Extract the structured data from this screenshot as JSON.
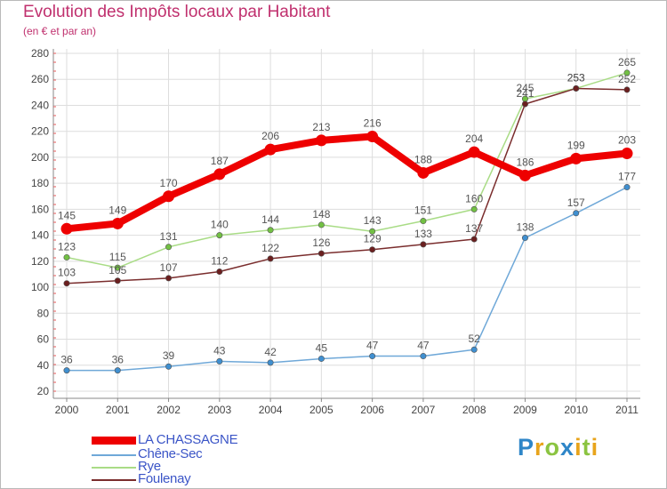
{
  "header": {
    "title": "Evolution des Impôts locaux par Habitant",
    "subtitle": "(en € et par an)"
  },
  "logo": {
    "text": "Proxiti",
    "letters": [
      {
        "ch": "P",
        "color": "#2e86c8"
      },
      {
        "ch": "r",
        "color": "#e8a41c"
      },
      {
        "ch": "o",
        "color": "#8bc441"
      },
      {
        "ch": "x",
        "color": "#2e86c8"
      },
      {
        "ch": "i",
        "color": "#e8a41c"
      },
      {
        "ch": "t",
        "color": "#8bc441"
      },
      {
        "ch": "i",
        "color": "#e8a41c"
      }
    ]
  },
  "chart_data": {
    "type": "line",
    "title": "Evolution des Impôts locaux par Habitant",
    "subtitle": "(en € et par an)",
    "xlabel": "",
    "ylabel": "",
    "x": [
      "2000",
      "2001",
      "2002",
      "2003",
      "2004",
      "2005",
      "2006",
      "2007",
      "2008",
      "2009",
      "2010",
      "2011"
    ],
    "ylim": [
      20,
      280
    ],
    "yticks": [
      20,
      40,
      60,
      80,
      100,
      120,
      140,
      160,
      180,
      200,
      220,
      240,
      260,
      280
    ],
    "grid": true,
    "legend": "bottom-left",
    "series": [
      {
        "name": "LA CHASSAGNE",
        "values": [
          145,
          149,
          170,
          187,
          206,
          213,
          216,
          188,
          204,
          186,
          199,
          203
        ],
        "color": "#ee0000",
        "marker_color": "#ee0000",
        "thick": true
      },
      {
        "name": "Chêne-Sec",
        "values": [
          36,
          36,
          39,
          43,
          42,
          45,
          47,
          47,
          52,
          138,
          157,
          177
        ],
        "color": "#6fa8d8",
        "marker_color": "#3f8fd0",
        "thick": false
      },
      {
        "name": "Rye",
        "values": [
          123,
          115,
          131,
          140,
          144,
          148,
          143,
          151,
          160,
          245,
          253,
          265
        ],
        "color": "#a9dc86",
        "marker_color": "#72c043",
        "thick": false
      },
      {
        "name": "Foulenay",
        "values": [
          103,
          105,
          107,
          112,
          122,
          126,
          129,
          133,
          137,
          241,
          253,
          252
        ],
        "color": "#7a2d2d",
        "marker_color": "#6b1f1f",
        "thick": false
      }
    ]
  }
}
